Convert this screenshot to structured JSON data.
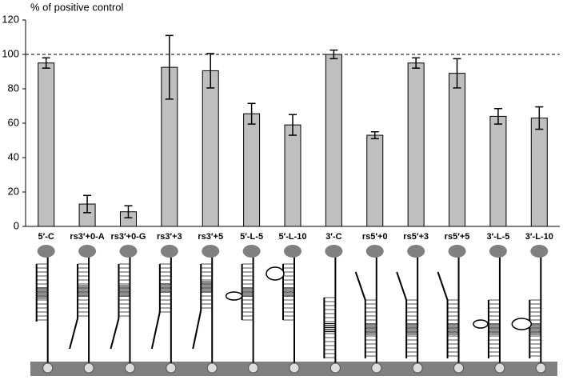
{
  "chart_data": {
    "type": "bar",
    "y_label": "% of positive control",
    "categories": [
      "5′-C",
      "rs3′+0-A",
      "rs3′+0-G",
      "rs3′+3",
      "rs3′+5",
      "5′-L-5",
      "5′-L-10",
      "3′-C",
      "rs5′+0",
      "rs5′+3",
      "rs5′+5",
      "3′-L-5",
      "3′-L-10"
    ],
    "values": [
      95,
      13,
      8.5,
      92.5,
      90.5,
      65.5,
      59,
      100,
      53,
      95,
      89,
      64,
      63
    ],
    "errors": [
      3,
      5,
      3.5,
      18.5,
      10,
      6,
      6,
      2.5,
      2,
      3,
      8.5,
      4.5,
      6.5
    ],
    "color": "#bfbfbf",
    "reference_line": 100,
    "ylim": [
      0,
      120
    ],
    "yticks": [
      0,
      20,
      40,
      60,
      80,
      100,
      120
    ]
  }
}
